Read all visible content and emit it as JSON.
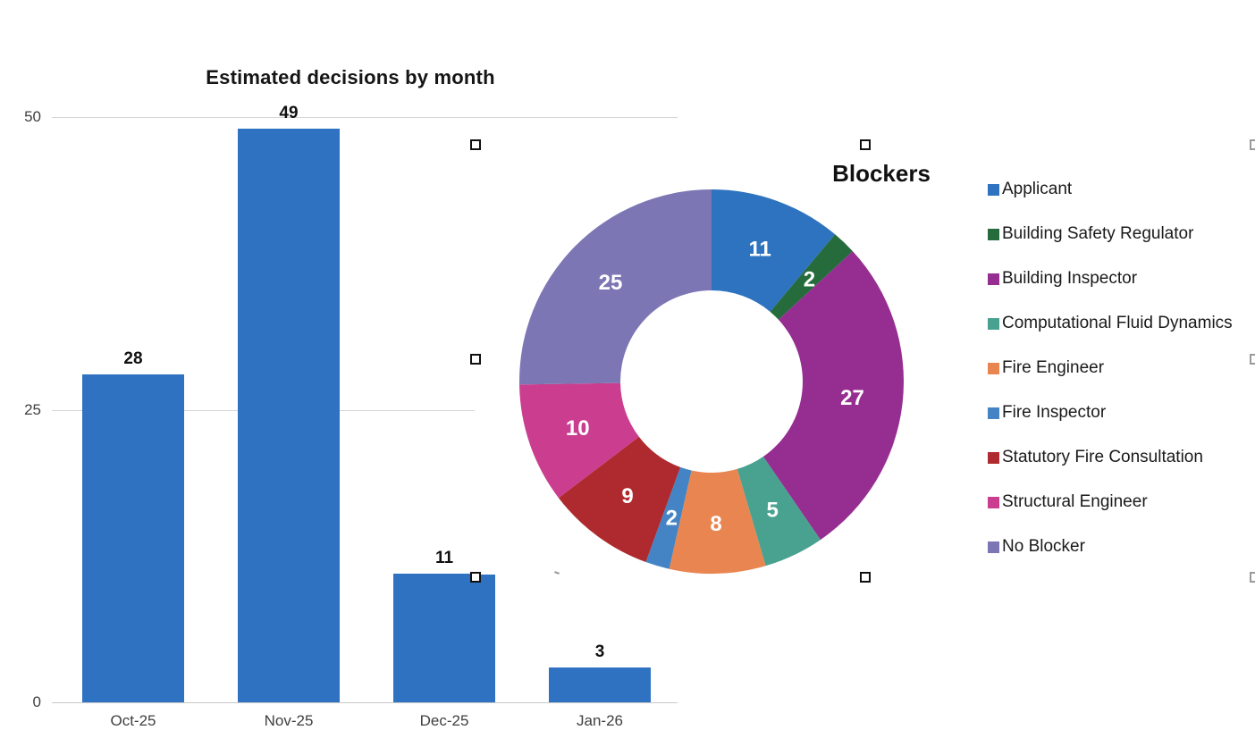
{
  "bar_chart": {
    "title": "Estimated decisions by month",
    "yticks": [
      "0",
      "25",
      "50"
    ]
  },
  "pie_chart": {
    "title": "Blockers"
  },
  "chart_data": [
    {
      "type": "bar",
      "title": "Estimated decisions by month",
      "categories": [
        "Oct-25",
        "Nov-25",
        "Dec-25",
        "Jan-26"
      ],
      "values": [
        28,
        49,
        11,
        3
      ],
      "data_labels": [
        28,
        49,
        11,
        3
      ],
      "bar_color": "#2E72C1",
      "xlabel": "",
      "ylabel": "",
      "ylim": [
        0,
        50
      ],
      "yticks": [
        0,
        25,
        50
      ],
      "grid": true,
      "legend_position": "none"
    },
    {
      "type": "pie",
      "subtype": "donut",
      "title": "Blockers",
      "labels": [
        "Applicant",
        "Building Safety Regulator",
        "Building Inspector",
        "Computational Fluid Dynamics",
        "Fire Engineer",
        "Fire Inspector",
        "Statutory Fire Consultation",
        "Structural Engineer",
        "No Blocker"
      ],
      "values": [
        11,
        2,
        27,
        5,
        8,
        2,
        9,
        10,
        25
      ],
      "colors": [
        "#2E73BF",
        "#256B3B",
        "#962E91",
        "#48A28F",
        "#E98550",
        "#4484C4",
        "#AF2A2F",
        "#CB3D8F",
        "#7C76B4"
      ],
      "data_labels": [
        11,
        2,
        27,
        5,
        8,
        2,
        9,
        10,
        25
      ],
      "start_angle_deg": 0,
      "direction": "clockwise",
      "legend_position": "right",
      "grid": false
    }
  ],
  "colors": {
    "bar_blue": "#2E72C1",
    "gridline": "#d6d6d6",
    "axis_line": "#c8c8c8",
    "tick_text": "#3f3f3f"
  }
}
